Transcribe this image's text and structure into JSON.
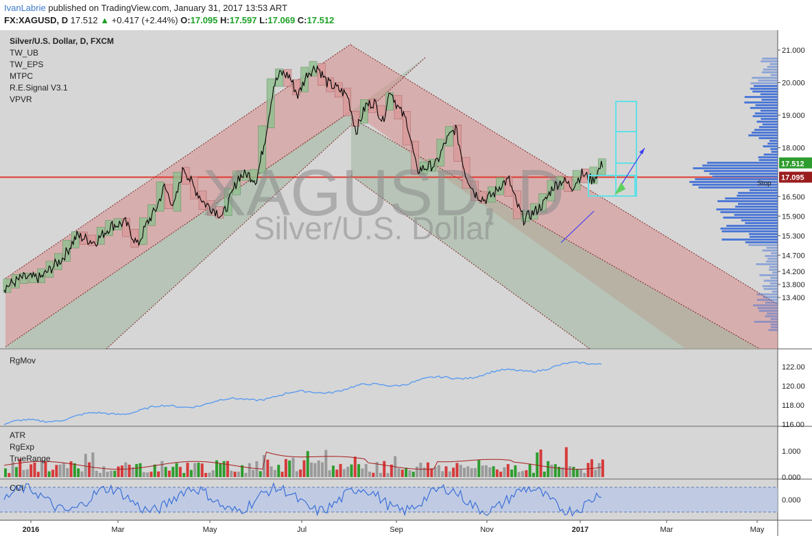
{
  "header": {
    "author": "IvanLabrie",
    "published_text": "published on TradingView.com, January 31, 2017 13:53 ART",
    "symbol_line": "FX:XAGUSD, D",
    "last": "17.512",
    "change": "+0.417 (+2.44%)",
    "o_label": "O:",
    "o_value": "17.095",
    "h_label": "H:",
    "h_value": "17.597",
    "l_label": "L:",
    "l_value": "17.069",
    "c_label": "C:",
    "c_value": "17.512"
  },
  "colors": {
    "background": "#d6d6d6",
    "channel_red": "#d98e8e",
    "channel_green": "#9fb79f",
    "up_candle": "#2e9c2e",
    "down_candle": "#d63a3a",
    "price_line": "#000000",
    "rgmov_line": "#5b9bf0",
    "atr_line": "#a61c1c",
    "cci_line": "#3b6fd8",
    "volume_profile": "#3f6fd6",
    "hline": "#e0392f",
    "target_box": "#5fe0e6"
  },
  "chart_data": {
    "type": "line",
    "title": "Silver/U.S. Dollar, D, FXCM",
    "watermark_symbol": "XAGUSD, D",
    "watermark_name": "Silver/U.S. Dollar",
    "indicators": [
      "TW_UB",
      "TW_EPS",
      "MTPC",
      "R.E.Signal V3.1",
      "VPVR"
    ],
    "x_tick_labels": [
      "2016",
      "Mar",
      "May",
      "Jul",
      "Sep",
      "Nov",
      "2017",
      "Mar",
      "May"
    ],
    "price_axis_labels": [
      "21.000",
      "20.000",
      "19.000",
      "18.000",
      "17.512",
      "17.095",
      "16.500",
      "15.900",
      "15.300",
      "14.700",
      "14.200",
      "13.800",
      "13.400"
    ],
    "price_ticks": [
      21.0,
      20.0,
      19.0,
      18.0,
      16.5,
      15.9,
      15.3,
      14.7,
      14.2,
      13.8,
      13.4
    ],
    "last_price": 17.512,
    "last_price_label": "17.512",
    "stop_price": 17.095,
    "stop_price_label": "17.095",
    "stop_label": "Stop",
    "price_series": [
      {
        "x": 0,
        "y": 13.7
      },
      {
        "x": 15,
        "y": 14.0
      },
      {
        "x": 30,
        "y": 14.0
      },
      {
        "x": 48,
        "y": 14.6
      },
      {
        "x": 60,
        "y": 15.3
      },
      {
        "x": 75,
        "y": 15.1
      },
      {
        "x": 88,
        "y": 15.6
      },
      {
        "x": 100,
        "y": 15.7
      },
      {
        "x": 110,
        "y": 15.0
      },
      {
        "x": 118,
        "y": 15.7
      },
      {
        "x": 125,
        "y": 16.1
      },
      {
        "x": 132,
        "y": 16.8
      },
      {
        "x": 140,
        "y": 16.2
      },
      {
        "x": 148,
        "y": 17.4
      },
      {
        "x": 156,
        "y": 16.8
      },
      {
        "x": 165,
        "y": 16.3
      },
      {
        "x": 173,
        "y": 16.1
      },
      {
        "x": 180,
        "y": 15.9
      },
      {
        "x": 186,
        "y": 16.4
      },
      {
        "x": 193,
        "y": 17.1
      },
      {
        "x": 200,
        "y": 17.2
      },
      {
        "x": 208,
        "y": 17.0
      },
      {
        "x": 215,
        "y": 18.3
      },
      {
        "x": 222,
        "y": 19.9
      },
      {
        "x": 228,
        "y": 20.3
      },
      {
        "x": 235,
        "y": 20.2
      },
      {
        "x": 242,
        "y": 19.6
      },
      {
        "x": 250,
        "y": 20.3
      },
      {
        "x": 258,
        "y": 20.5
      },
      {
        "x": 266,
        "y": 20.0
      },
      {
        "x": 275,
        "y": 19.8
      },
      {
        "x": 283,
        "y": 19.6
      },
      {
        "x": 290,
        "y": 18.5
      },
      {
        "x": 298,
        "y": 19.3
      },
      {
        "x": 305,
        "y": 19.4
      },
      {
        "x": 312,
        "y": 18.8
      },
      {
        "x": 318,
        "y": 19.8
      },
      {
        "x": 325,
        "y": 19.2
      },
      {
        "x": 332,
        "y": 18.8
      },
      {
        "x": 340,
        "y": 17.3
      },
      {
        "x": 348,
        "y": 17.4
      },
      {
        "x": 356,
        "y": 17.5
      },
      {
        "x": 364,
        "y": 18.2
      },
      {
        "x": 372,
        "y": 18.6
      },
      {
        "x": 380,
        "y": 17.2
      },
      {
        "x": 388,
        "y": 16.6
      },
      {
        "x": 396,
        "y": 16.4
      },
      {
        "x": 404,
        "y": 16.6
      },
      {
        "x": 410,
        "y": 16.9
      },
      {
        "x": 416,
        "y": 17.0
      },
      {
        "x": 422,
        "y": 16.3
      },
      {
        "x": 428,
        "y": 15.8
      },
      {
        "x": 436,
        "y": 16.0
      },
      {
        "x": 445,
        "y": 16.3
      },
      {
        "x": 452,
        "y": 16.8
      },
      {
        "x": 460,
        "y": 17.0
      },
      {
        "x": 468,
        "y": 16.8
      },
      {
        "x": 476,
        "y": 17.2
      },
      {
        "x": 485,
        "y": 17.0
      },
      {
        "x": 493,
        "y": 17.51
      }
    ],
    "x_start_label": "Jan 2016",
    "rgmov": {
      "label": "RgMov",
      "axis_labels": [
        "122.00",
        "120.00",
        "118.00",
        "116.00"
      ],
      "ticks": [
        122,
        120,
        118,
        116
      ],
      "start": 116.0,
      "end": 122.5
    },
    "atr": {
      "labels": [
        "ATR",
        "RgExp",
        "TrueRange"
      ],
      "axis_labels": [
        "1.000",
        "0.000"
      ],
      "ticks": [
        1.0,
        0.0
      ]
    },
    "cci": {
      "label": "CCI",
      "axis_labels": [
        "0.000"
      ],
      "ticks": [
        0.0
      ]
    }
  }
}
